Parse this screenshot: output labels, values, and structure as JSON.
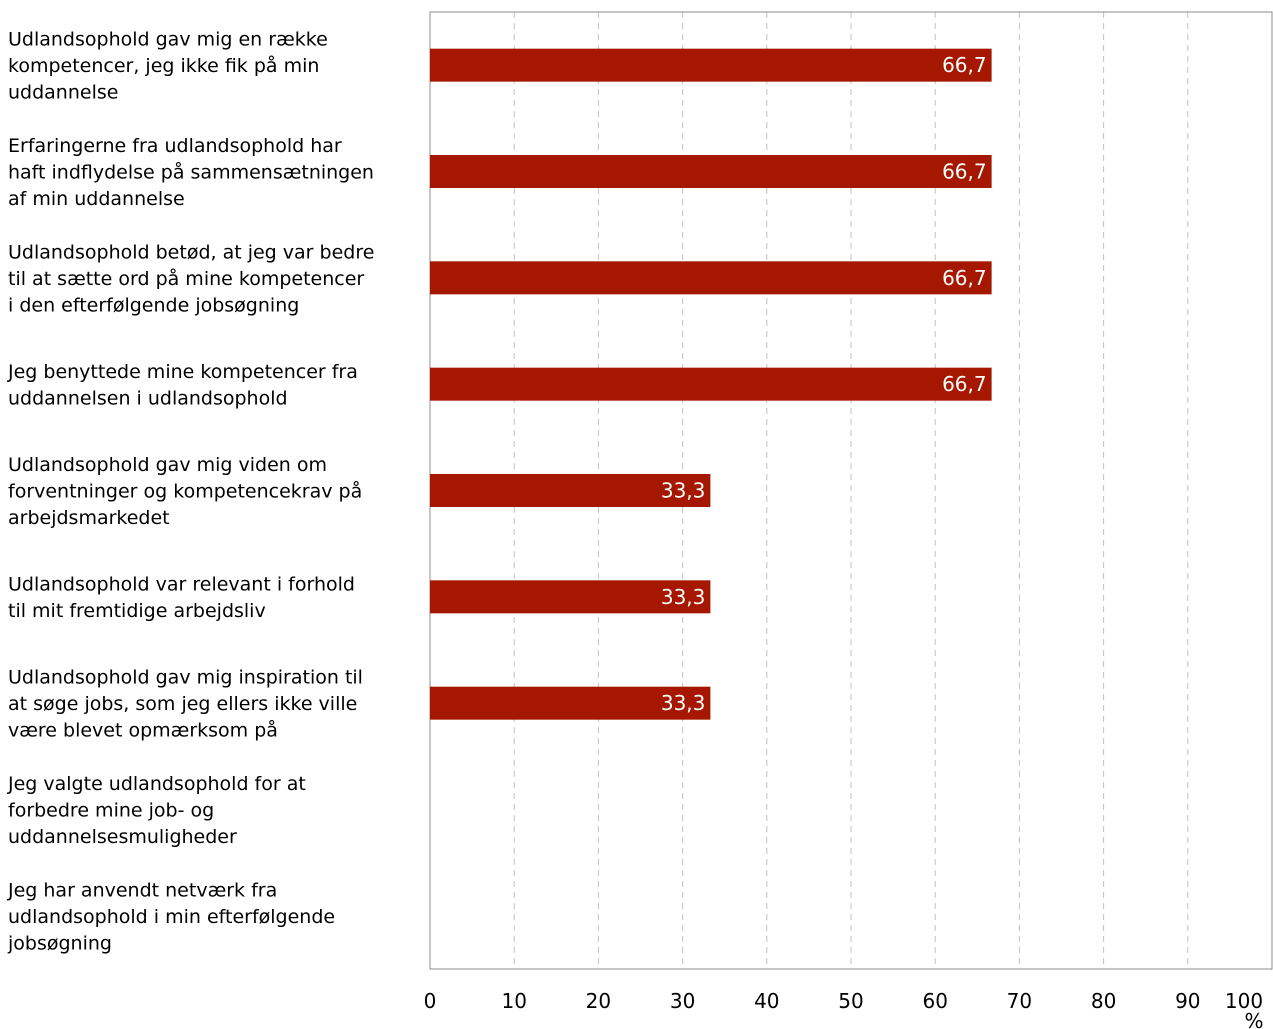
{
  "chart_data": {
    "type": "bar",
    "orientation": "horizontal",
    "title": "",
    "xlabel": "",
    "ylabel": "",
    "unit": "%",
    "xlim": [
      0,
      100
    ],
    "xticks": [
      "0",
      "10",
      "20",
      "30",
      "40",
      "50",
      "60",
      "70",
      "80",
      "90",
      "100"
    ],
    "grid": "vertical dashed",
    "bar_color": "#A61700",
    "categories": [
      [
        "Udlandsophold gav mig en række",
        "kompetencer, jeg ikke fik på min",
        "uddannelse"
      ],
      [
        "Erfaringerne fra udlandsophold har",
        "haft indflydelse på sammensætningen",
        "af min uddannelse"
      ],
      [
        "Udlandsophold betød, at jeg var bedre",
        "til at sætte ord på mine kompetencer",
        "i den efterfølgende jobsøgning"
      ],
      [
        "Jeg benyttede mine kompetencer fra",
        "uddannelsen i udlandsophold"
      ],
      [
        "Udlandsophold gav mig viden om",
        "forventninger og kompetencekrav på",
        "arbejdsmarkedet"
      ],
      [
        "Udlandsophold var relevant i forhold",
        "til mit fremtidige arbejdsliv"
      ],
      [
        "Udlandsophold gav mig inspiration til",
        "at søge jobs, som jeg ellers ikke ville",
        "være blevet opmærksom på"
      ],
      [
        "Jeg valgte udlandsophold for at",
        "forbedre mine job- og",
        "uddannelsesmuligheder"
      ],
      [
        "Jeg har anvendt netværk fra",
        "udlandsophold i min efterfølgende",
        "jobsøgning"
      ]
    ],
    "values": [
      66.7,
      66.7,
      66.7,
      66.7,
      33.3,
      33.3,
      33.3,
      0,
      0
    ],
    "value_labels": [
      "66,7",
      "66,7",
      "66,7",
      "66,7",
      "33,3",
      "33,3",
      "33,3",
      "",
      ""
    ]
  }
}
